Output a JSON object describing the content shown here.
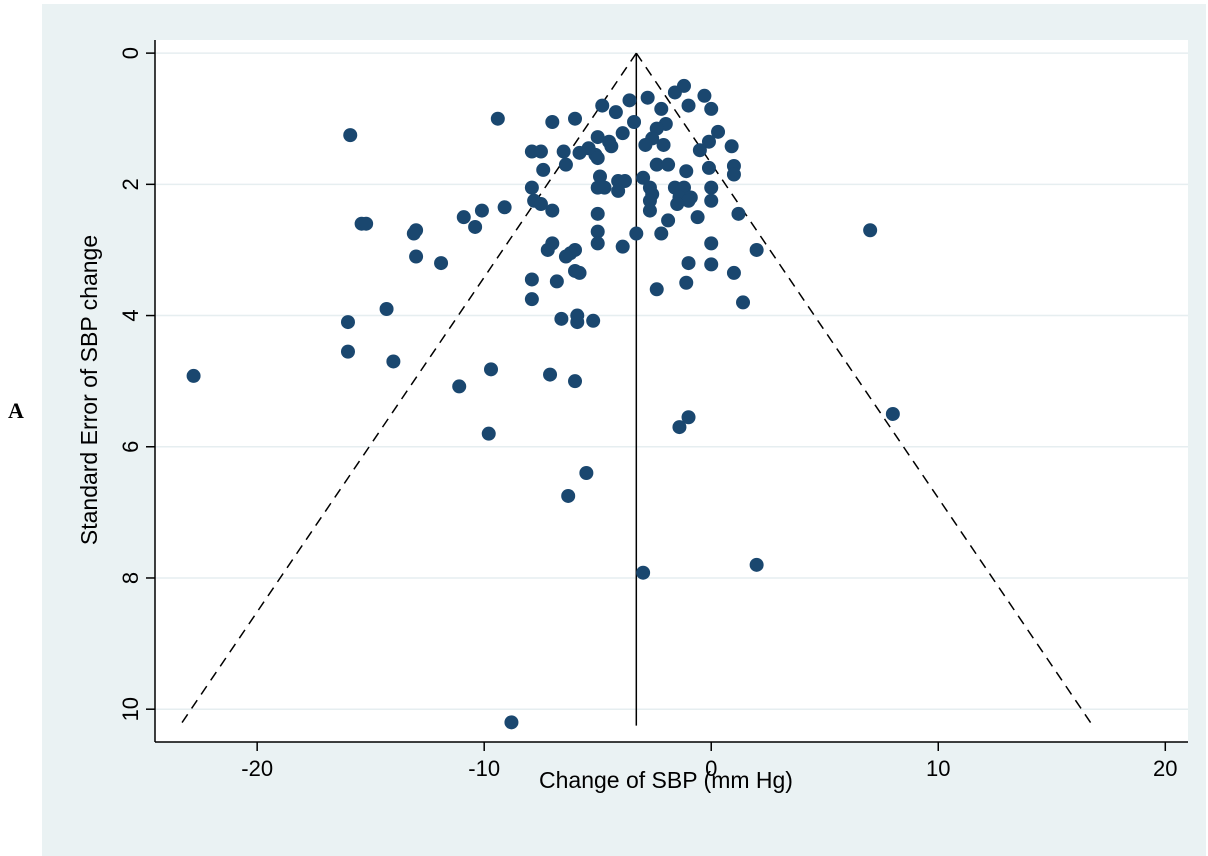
{
  "panel_label": "A",
  "colors": {
    "outer_background": "#eaf2f3",
    "plot_background": "#ffffff",
    "gridline": "#e6eef0",
    "marker": "#1a476f",
    "axis": "#000000"
  },
  "chart_data": {
    "type": "scatter",
    "title": "",
    "xlabel": "Change of SBP (mm Hg)",
    "ylabel": "Standard Error of SBP change",
    "xlim": [
      -24.5,
      21.0
    ],
    "ylim": [
      -0.2,
      10.5
    ],
    "y_reversed": true,
    "x_ticks": [
      -20,
      -10,
      0,
      10,
      20
    ],
    "x_tick_labels": [
      "-20",
      "-10",
      "0",
      "10",
      "20"
    ],
    "y_ticks": [
      0,
      2,
      4,
      6,
      8,
      10
    ],
    "y_tick_labels": [
      "0",
      "2",
      "4",
      "6",
      "8",
      "10"
    ],
    "grid": true,
    "pooled_estimate": -3.3,
    "funnel_lines": [
      {
        "style": "dashed",
        "points": [
          [
            -3.3,
            0
          ],
          [
            -23.4,
            10.25
          ]
        ]
      },
      {
        "style": "dashed",
        "points": [
          [
            -3.3,
            0
          ],
          [
            16.8,
            10.25
          ]
        ]
      },
      {
        "style": "solid",
        "points": [
          [
            -3.3,
            0
          ],
          [
            -3.3,
            10.25
          ]
        ]
      }
    ],
    "points": [
      [
        -1.2,
        0.5
      ],
      [
        -1.6,
        0.6
      ],
      [
        -0.3,
        0.65
      ],
      [
        -2.8,
        0.68
      ],
      [
        -3.6,
        0.72
      ],
      [
        -4.8,
        0.8
      ],
      [
        -1.0,
        0.8
      ],
      [
        0.0,
        0.85
      ],
      [
        -2.2,
        0.85
      ],
      [
        -4.2,
        0.9
      ],
      [
        -6.0,
        1.0
      ],
      [
        -9.4,
        1.0
      ],
      [
        -3.4,
        1.05
      ],
      [
        -7.0,
        1.05
      ],
      [
        -2.0,
        1.08
      ],
      [
        -2.4,
        1.15
      ],
      [
        0.3,
        1.2
      ],
      [
        -3.9,
        1.22
      ],
      [
        -15.9,
        1.25
      ],
      [
        -5.0,
        1.28
      ],
      [
        -2.6,
        1.3
      ],
      [
        -4.5,
        1.35
      ],
      [
        -0.1,
        1.35
      ],
      [
        -2.9,
        1.4
      ],
      [
        -2.1,
        1.4
      ],
      [
        -4.4,
        1.42
      ],
      [
        0.9,
        1.42
      ],
      [
        -5.4,
        1.45
      ],
      [
        -0.5,
        1.48
      ],
      [
        -7.9,
        1.5
      ],
      [
        -7.5,
        1.5
      ],
      [
        -6.5,
        1.5
      ],
      [
        -5.8,
        1.52
      ],
      [
        -5.1,
        1.55
      ],
      [
        -5.0,
        1.6
      ],
      [
        -6.4,
        1.7
      ],
      [
        -2.4,
        1.7
      ],
      [
        -1.9,
        1.7
      ],
      [
        1.0,
        1.72
      ],
      [
        -0.1,
        1.75
      ],
      [
        -7.4,
        1.78
      ],
      [
        -1.1,
        1.8
      ],
      [
        1.0,
        1.85
      ],
      [
        -4.9,
        1.88
      ],
      [
        -3.0,
        1.9
      ],
      [
        -4.1,
        1.95
      ],
      [
        -3.8,
        1.95
      ],
      [
        -7.9,
        2.05
      ],
      [
        -5.0,
        2.05
      ],
      [
        -4.7,
        2.05
      ],
      [
        -2.7,
        2.05
      ],
      [
        -1.6,
        2.05
      ],
      [
        -1.2,
        2.05
      ],
      [
        0.0,
        2.05
      ],
      [
        -4.1,
        2.1
      ],
      [
        -1.3,
        2.1
      ],
      [
        -2.6,
        2.15
      ],
      [
        -1.4,
        2.2
      ],
      [
        -0.9,
        2.2
      ],
      [
        -7.8,
        2.25
      ],
      [
        -2.7,
        2.25
      ],
      [
        -1.0,
        2.25
      ],
      [
        0.0,
        2.25
      ],
      [
        -7.5,
        2.3
      ],
      [
        -1.5,
        2.3
      ],
      [
        -9.1,
        2.35
      ],
      [
        -10.1,
        2.4
      ],
      [
        -7.0,
        2.4
      ],
      [
        -2.7,
        2.4
      ],
      [
        -5.0,
        2.45
      ],
      [
        1.2,
        2.45
      ],
      [
        -10.9,
        2.5
      ],
      [
        -0.6,
        2.5
      ],
      [
        -1.9,
        2.55
      ],
      [
        -15.4,
        2.6
      ],
      [
        -15.2,
        2.6
      ],
      [
        -10.4,
        2.65
      ],
      [
        7.0,
        2.7
      ],
      [
        -13.0,
        2.7
      ],
      [
        -5.0,
        2.72
      ],
      [
        -13.1,
        2.75
      ],
      [
        -3.3,
        2.75
      ],
      [
        -2.2,
        2.75
      ],
      [
        -7.0,
        2.9
      ],
      [
        0.0,
        2.9
      ],
      [
        -5.0,
        2.9
      ],
      [
        -3.9,
        2.95
      ],
      [
        2.0,
        3.0
      ],
      [
        -6.0,
        3.0
      ],
      [
        -7.2,
        3.0
      ],
      [
        -6.2,
        3.05
      ],
      [
        -6.4,
        3.1
      ],
      [
        -13.0,
        3.1
      ],
      [
        -11.9,
        3.2
      ],
      [
        -1.0,
        3.2
      ],
      [
        0.0,
        3.22
      ],
      [
        -6.0,
        3.32
      ],
      [
        -5.8,
        3.35
      ],
      [
        1.0,
        3.35
      ],
      [
        -7.9,
        3.45
      ],
      [
        -6.8,
        3.48
      ],
      [
        -1.1,
        3.5
      ],
      [
        -2.4,
        3.6
      ],
      [
        -7.9,
        3.75
      ],
      [
        1.4,
        3.8
      ],
      [
        -14.3,
        3.9
      ],
      [
        -5.9,
        4.0
      ],
      [
        -6.6,
        4.05
      ],
      [
        -5.2,
        4.08
      ],
      [
        -5.9,
        4.1
      ],
      [
        -16.0,
        4.1
      ],
      [
        -16.0,
        4.55
      ],
      [
        -14.0,
        4.7
      ],
      [
        -9.7,
        4.82
      ],
      [
        -7.1,
        4.9
      ],
      [
        -22.8,
        4.92
      ],
      [
        -6.0,
        5.0
      ],
      [
        -11.1,
        5.08
      ],
      [
        -1.0,
        5.55
      ],
      [
        8.0,
        5.5
      ],
      [
        -1.4,
        5.7
      ],
      [
        -9.8,
        5.8
      ],
      [
        -5.5,
        6.4
      ],
      [
        -6.3,
        6.75
      ],
      [
        2.0,
        7.8
      ],
      [
        -3.0,
        7.92
      ],
      [
        -8.8,
        10.2
      ]
    ]
  }
}
